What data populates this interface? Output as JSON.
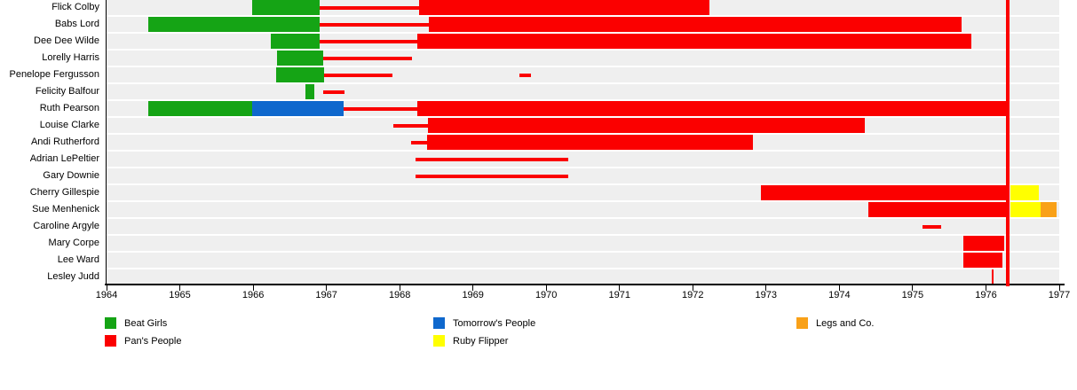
{
  "chart_data": {
    "type": "timeline-gantt",
    "title": "",
    "x_min": 1964,
    "x_max": 1977,
    "year_ticks": [
      "1964",
      "1965",
      "1966",
      "1967",
      "1968",
      "1969",
      "1970",
      "1971",
      "1972",
      "1973",
      "1974",
      "1975",
      "1976",
      "1977"
    ],
    "grid": false,
    "bands": {
      "beat_girls": {
        "label": "Beat Girls",
        "color": "#15A415"
      },
      "pans_people": {
        "label": "Pan's People",
        "color": "#FB0000"
      },
      "tomorrows_people": {
        "label": "Tomorrow's People",
        "color": "#0F68CD"
      },
      "ruby_flipper": {
        "label": "Ruby Flipper",
        "color": "#FFFF00"
      },
      "legs_and_co": {
        "label": "Legs and Co.",
        "color": "#F9A118"
      }
    },
    "marker": {
      "year": 1976.27,
      "color": "#FB0000"
    },
    "rows": [
      {
        "name": "Flick Colby",
        "segments": [
          {
            "band": "beat_girls",
            "style": "bar",
            "start": 1965.99,
            "end": 1966.91
          },
          {
            "band": "pans_people",
            "style": "line",
            "start": 1966.91,
            "end": 1968.27
          },
          {
            "band": "pans_people",
            "style": "bar",
            "start": 1968.27,
            "end": 1972.23
          }
        ]
      },
      {
        "name": "Babs Lord",
        "segments": [
          {
            "band": "beat_girls",
            "style": "bar",
            "start": 1964.57,
            "end": 1966.91
          },
          {
            "band": "pans_people",
            "style": "line",
            "start": 1966.91,
            "end": 1968.4
          },
          {
            "band": "pans_people",
            "style": "bar",
            "start": 1968.4,
            "end": 1975.67
          }
        ]
      },
      {
        "name": "Dee Dee Wilde",
        "segments": [
          {
            "band": "beat_girls",
            "style": "bar",
            "start": 1966.24,
            "end": 1966.91
          },
          {
            "band": "pans_people",
            "style": "line",
            "start": 1966.91,
            "end": 1968.24
          },
          {
            "band": "pans_people",
            "style": "bar",
            "start": 1968.24,
            "end": 1975.8
          }
        ]
      },
      {
        "name": "Lorelly Harris",
        "segments": [
          {
            "band": "beat_girls",
            "style": "bar",
            "start": 1966.33,
            "end": 1966.96
          },
          {
            "band": "pans_people",
            "style": "line",
            "start": 1966.96,
            "end": 1968.17
          }
        ]
      },
      {
        "name": "Penelope Fergusson",
        "segments": [
          {
            "band": "beat_girls",
            "style": "bar",
            "start": 1966.31,
            "end": 1966.97
          },
          {
            "band": "pans_people",
            "style": "line",
            "start": 1966.97,
            "end": 1967.9
          },
          {
            "band": "pans_people",
            "style": "line",
            "start": 1969.63,
            "end": 1969.79
          }
        ]
      },
      {
        "name": "Felicity Balfour",
        "segments": [
          {
            "band": "beat_girls",
            "style": "bar",
            "start": 1966.71,
            "end": 1966.84
          },
          {
            "band": "pans_people",
            "style": "line",
            "start": 1966.95,
            "end": 1967.25
          }
        ]
      },
      {
        "name": "Ruth Pearson",
        "segments": [
          {
            "band": "beat_girls",
            "style": "bar",
            "start": 1964.57,
            "end": 1965.99
          },
          {
            "band": "tomorrows_people",
            "style": "bar",
            "start": 1965.99,
            "end": 1967.23
          },
          {
            "band": "pans_people",
            "style": "line",
            "start": 1967.23,
            "end": 1968.24
          },
          {
            "band": "pans_people",
            "style": "bar",
            "start": 1968.24,
            "end": 1976.27
          }
        ]
      },
      {
        "name": "Louise Clarke",
        "segments": [
          {
            "band": "pans_people",
            "style": "line",
            "start": 1967.91,
            "end": 1968.39
          },
          {
            "band": "pans_people",
            "style": "bar",
            "start": 1968.39,
            "end": 1974.35
          }
        ]
      },
      {
        "name": "Andi Rutherford",
        "segments": [
          {
            "band": "pans_people",
            "style": "line",
            "start": 1968.15,
            "end": 1968.37
          },
          {
            "band": "pans_people",
            "style": "bar",
            "start": 1968.37,
            "end": 1972.82
          }
        ]
      },
      {
        "name": "Adrian LePeltier",
        "segments": [
          {
            "band": "pans_people",
            "style": "line",
            "start": 1968.22,
            "end": 1970.3
          }
        ]
      },
      {
        "name": "Gary Downie",
        "segments": [
          {
            "band": "pans_people",
            "style": "line",
            "start": 1968.22,
            "end": 1970.3
          }
        ]
      },
      {
        "name": "Cherry Gillespie",
        "segments": [
          {
            "band": "pans_people",
            "style": "bar",
            "start": 1972.93,
            "end": 1976.27
          },
          {
            "band": "ruby_flipper",
            "style": "bar",
            "start": 1976.33,
            "end": 1976.72
          }
        ]
      },
      {
        "name": "Sue Menhenick",
        "segments": [
          {
            "band": "pans_people",
            "style": "bar",
            "start": 1974.39,
            "end": 1976.27
          },
          {
            "band": "ruby_flipper",
            "style": "bar",
            "start": 1976.33,
            "end": 1976.75
          },
          {
            "band": "legs_and_co",
            "style": "bar",
            "start": 1976.75,
            "end": 1976.96
          }
        ]
      },
      {
        "name": "Caroline Argyle",
        "segments": [
          {
            "band": "pans_people",
            "style": "line",
            "start": 1975.13,
            "end": 1975.39
          }
        ]
      },
      {
        "name": "Mary Corpe",
        "segments": [
          {
            "band": "pans_people",
            "style": "bar",
            "start": 1975.69,
            "end": 1976.25
          }
        ]
      },
      {
        "name": "Lee Ward",
        "segments": [
          {
            "band": "pans_people",
            "style": "bar",
            "start": 1975.69,
            "end": 1976.22
          }
        ]
      },
      {
        "name": "Lesley Judd",
        "segments": [
          {
            "band": "pans_people",
            "style": "mark",
            "start": 1976.08,
            "end": 1976.1
          }
        ]
      }
    ],
    "legend_columns": [
      [
        "beat_girls",
        "pans_people"
      ],
      [
        "tomorrows_people",
        "ruby_flipper"
      ],
      [
        "legs_and_co"
      ]
    ],
    "legend_position": "bottom"
  }
}
